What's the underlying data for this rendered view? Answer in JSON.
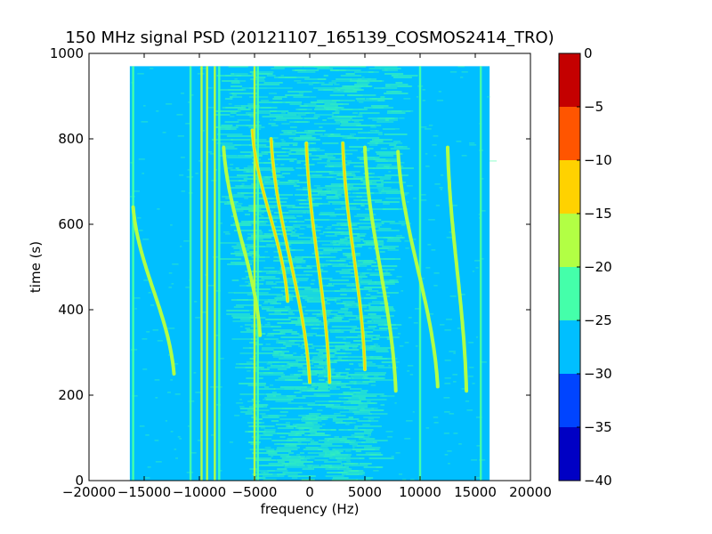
{
  "chart_data": {
    "type": "heatmap",
    "title": "150 MHz signal PSD (20121107_165139_COSMOS2414_TRO)",
    "xlabel": "frequency (Hz)",
    "ylabel": "time (s)",
    "xlim": [
      -20000,
      20000
    ],
    "ylim": [
      0,
      1000
    ],
    "x_ticks": [
      -20000,
      -15000,
      -10000,
      -5000,
      0,
      5000,
      10000,
      15000,
      20000
    ],
    "x_tick_labels": [
      "−20000",
      "−15000",
      "−10000",
      "−5000",
      "0",
      "5000",
      "10000",
      "15000",
      "20000"
    ],
    "y_ticks": [
      0,
      200,
      400,
      600,
      800,
      1000
    ],
    "y_tick_labels": [
      "0",
      "200",
      "400",
      "600",
      "800",
      "1000"
    ],
    "data_extent": {
      "freq_min": -16300,
      "freq_max": 16300,
      "time_min": 0,
      "time_max": 970
    },
    "colorbar": {
      "range": [
        -40,
        0
      ],
      "ticks": [
        0,
        -5,
        -10,
        -15,
        -20,
        -25,
        -30,
        -35,
        -40
      ],
      "tick_labels": [
        "0",
        "−5",
        "−10",
        "−15",
        "−20",
        "−25",
        "−30",
        "−35",
        "−40"
      ],
      "levels": [
        {
          "from": -40,
          "to": -35,
          "color": "#0000c4"
        },
        {
          "from": -35,
          "to": -30,
          "color": "#0044ff"
        },
        {
          "from": -30,
          "to": -25,
          "color": "#00bfff"
        },
        {
          "from": -25,
          "to": -20,
          "color": "#44ffaa"
        },
        {
          "from": -20,
          "to": -15,
          "color": "#b2ff44"
        },
        {
          "from": -15,
          "to": -10,
          "color": "#ffd200"
        },
        {
          "from": -10,
          "to": -5,
          "color": "#ff5500"
        },
        {
          "from": -5,
          "to": 0,
          "color": "#c40000"
        }
      ]
    },
    "background_level_color": "#00bfff",
    "vertical_lines": [
      {
        "freq": -16000,
        "color": "#44ffaa"
      },
      {
        "freq": -10800,
        "color": "#44ffaa"
      },
      {
        "freq": -9800,
        "color": "#b2ff44"
      },
      {
        "freq": -9300,
        "color": "#b2ff44"
      },
      {
        "freq": -8600,
        "color": "#b2ff44"
      },
      {
        "freq": -8200,
        "color": "#44ffaa"
      },
      {
        "freq": -5000,
        "color": "#b2ff44"
      },
      {
        "freq": -4700,
        "color": "#44ffaa"
      },
      {
        "freq": 10000,
        "color": "#44ffaa"
      },
      {
        "freq": 15500,
        "color": "#44ffaa"
      }
    ],
    "doppler_tracks": [
      {
        "t_top": 800,
        "t_bottom": 230,
        "f_top": -3500,
        "f_bottom": 0,
        "level_color": "#ffd200"
      },
      {
        "t_top": 790,
        "t_bottom": 230,
        "f_top": -300,
        "f_bottom": 1800,
        "level_color": "#ffd200"
      },
      {
        "t_top": 790,
        "t_bottom": 260,
        "f_top": 3000,
        "f_bottom": 5000,
        "level_color": "#ffd200"
      },
      {
        "t_top": 780,
        "t_bottom": 210,
        "f_top": 5000,
        "f_bottom": 7800,
        "level_color": "#b2ff44"
      },
      {
        "t_top": 770,
        "t_bottom": 220,
        "f_top": 8000,
        "f_bottom": 11600,
        "level_color": "#b2ff44"
      },
      {
        "t_top": 780,
        "t_bottom": 210,
        "f_top": 12500,
        "f_bottom": 14200,
        "level_color": "#b2ff44"
      },
      {
        "t_top": 640,
        "t_bottom": 250,
        "f_top": -16000,
        "f_bottom": -12300,
        "level_color": "#b2ff44"
      },
      {
        "t_top": 780,
        "t_bottom": 340,
        "f_top": -7800,
        "f_bottom": -4500,
        "level_color": "#b2ff44"
      },
      {
        "t_top": 820,
        "t_bottom": 420,
        "f_top": -5200,
        "f_bottom": -2000,
        "level_color": "#ffd200"
      }
    ]
  }
}
